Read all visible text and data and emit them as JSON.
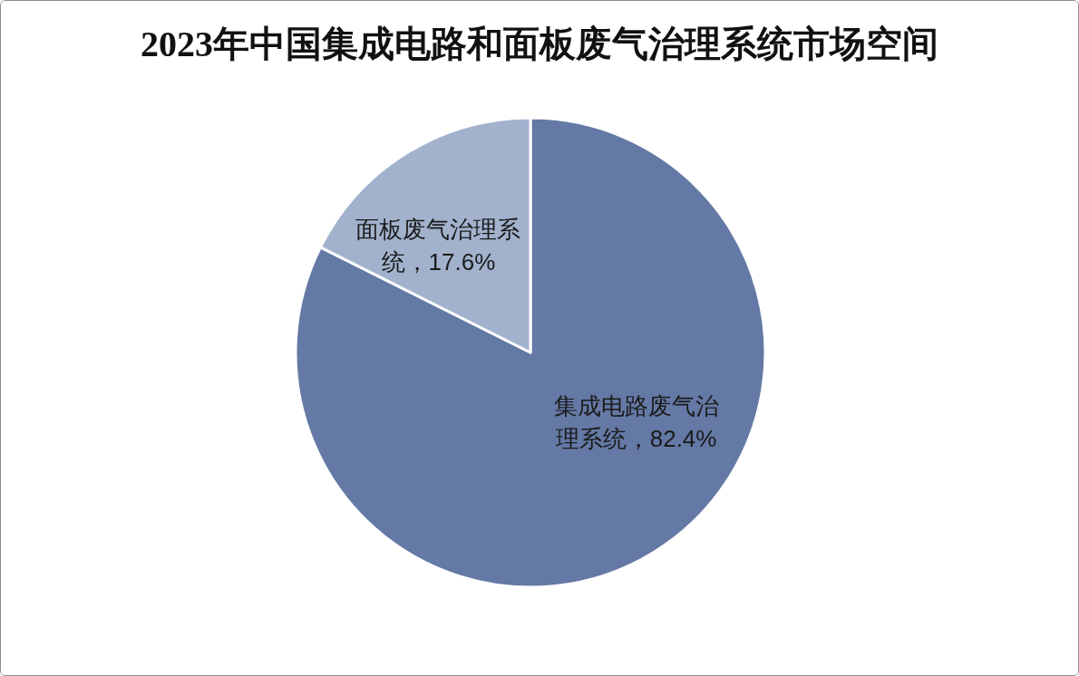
{
  "chart_data": {
    "type": "pie",
    "title": "2023年中国集成电路和面板废气治理系统市场空间",
    "categories": [
      "集成电路废气治理系统",
      "面板废气治理系统"
    ],
    "values": [
      82.4,
      17.6
    ],
    "colors": [
      "#6479a5",
      "#a2b2cd"
    ],
    "value_labels": [
      "82.4%",
      "17.6%"
    ]
  }
}
